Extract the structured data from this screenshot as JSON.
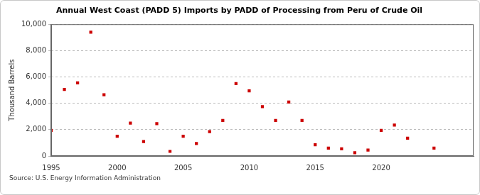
{
  "chart_data": {
    "type": "scatter",
    "title": "Annual West Coast (PADD 5) Imports by PADD of Processing from Peru of Crude Oil",
    "y_label": "Thousand Barrels",
    "source": "Source: U.S. Energy Information Administration",
    "x": [
      1995,
      1996,
      1997,
      1998,
      1999,
      2000,
      2001,
      2002,
      2003,
      2004,
      2005,
      2006,
      2007,
      2008,
      2009,
      2010,
      2011,
      2012,
      2013,
      2014,
      2015,
      2016,
      2017,
      2018,
      2019,
      2020,
      2021,
      2022,
      2024
    ],
    "values": [
      1950,
      5050,
      5550,
      9400,
      4650,
      1500,
      2500,
      1100,
      2450,
      350,
      1500,
      950,
      1850,
      2700,
      5500,
      4950,
      3750,
      2700,
      4100,
      2700,
      850,
      600,
      550,
      250,
      450,
      1950,
      2350,
      1350,
      600
    ],
    "color": "#cc0000",
    "marker": "square",
    "xlim": [
      1995,
      2027
    ],
    "xticks": [
      1995,
      2000,
      2005,
      2010,
      2015,
      2020
    ],
    "ylim": [
      0,
      10000
    ],
    "yticks": [
      0,
      {
        "value": 2000,
        "label": "2,000"
      },
      {
        "value": 4000,
        "label": "4,000"
      },
      {
        "value": 6000,
        "label": "6,000"
      },
      {
        "value": 8000,
        "label": "8,000"
      },
      {
        "value": 10000,
        "label": "10,000"
      }
    ],
    "grid": true
  }
}
